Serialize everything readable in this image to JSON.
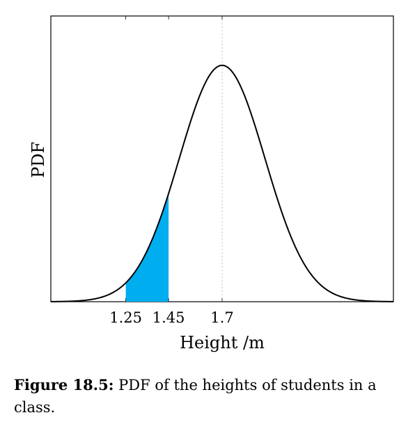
{
  "chart_data": {
    "type": "area",
    "curve": "normal-pdf",
    "mean": 1.7,
    "sd": 0.2,
    "xlim": [
      0.9,
      2.5
    ],
    "x_ticks": [
      1.25,
      1.45,
      1.7
    ],
    "x_tick_labels": [
      "1.25",
      "1.45",
      "1.7"
    ],
    "shaded_interval": [
      1.25,
      1.45
    ],
    "mean_marker": 1.7,
    "xlabel": "Height /m",
    "ylabel": "PDF",
    "grid": false,
    "colors": {
      "curve": "#000000",
      "shade": "#00aeef",
      "marker": "#c0c0c0"
    }
  },
  "caption": {
    "label": "Figure 18.5:",
    "text": "PDF of the heights of students in a class."
  }
}
